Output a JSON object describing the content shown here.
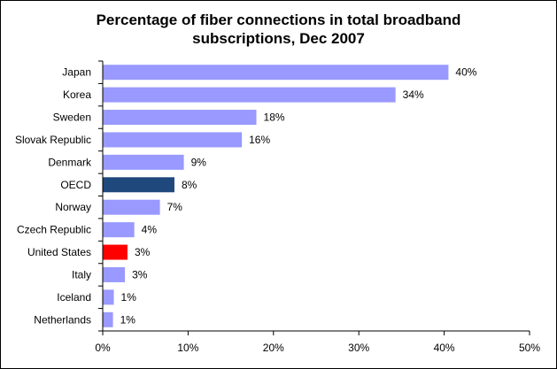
{
  "chart_data": {
    "type": "bar",
    "orientation": "horizontal",
    "title_lines": [
      "Percentage of fiber connections in total broadband",
      "subscriptions, Dec 2007"
    ],
    "categories": [
      "Japan",
      "Korea",
      "Sweden",
      "Slovak Republic",
      "Denmark",
      "OECD",
      "Norway",
      "Czech Republic",
      "United States",
      "Italy",
      "Iceland",
      "Netherlands"
    ],
    "values": [
      40.5,
      34.3,
      18.0,
      16.3,
      9.5,
      8.4,
      6.7,
      3.7,
      2.9,
      2.6,
      1.3,
      1.2
    ],
    "data_labels": [
      "40%",
      "34%",
      "18%",
      "16%",
      "9%",
      "8%",
      "7%",
      "4%",
      "3%",
      "3%",
      "1%",
      "1%"
    ],
    "x_ticks": [
      0,
      10,
      20,
      30,
      40,
      50
    ],
    "x_tick_labels": [
      "0%",
      "10%",
      "20%",
      "30%",
      "40%",
      "50%"
    ],
    "xlim": [
      0,
      50
    ],
    "grid": false,
    "legend": "none",
    "colors": {
      "default": "#9999ff",
      "highlight": {
        "OECD": "#1f497d",
        "United States": "#ff0000"
      }
    }
  }
}
